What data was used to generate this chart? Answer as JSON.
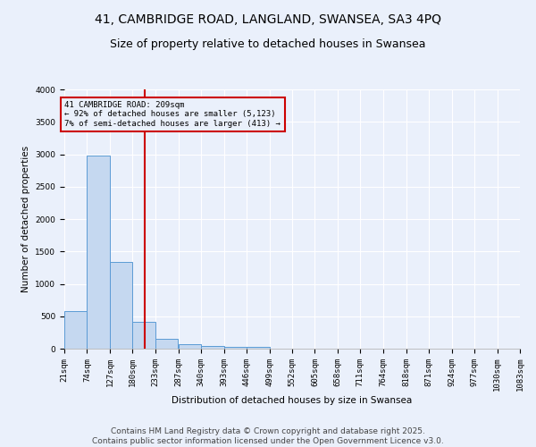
{
  "title": "41, CAMBRIDGE ROAD, LANGLAND, SWANSEA, SA3 4PQ",
  "subtitle": "Size of property relative to detached houses in Swansea",
  "xlabel": "Distribution of detached houses by size in Swansea",
  "ylabel": "Number of detached properties",
  "bins": [
    21,
    74,
    127,
    180,
    233,
    287,
    340,
    393,
    446,
    499,
    552,
    605,
    658,
    711,
    764,
    818,
    871,
    924,
    977,
    1030,
    1083
  ],
  "bar_heights": [
    580,
    2980,
    1340,
    420,
    150,
    70,
    40,
    30,
    30,
    0,
    0,
    0,
    0,
    0,
    0,
    0,
    0,
    0,
    0,
    0
  ],
  "bar_color": "#c5d8f0",
  "bar_edge_color": "#5b9bd5",
  "background_color": "#eaf0fb",
  "grid_color": "#ffffff",
  "vline_x": 209,
  "vline_color": "#cc0000",
  "annotation_text": "41 CAMBRIDGE ROAD: 209sqm\n← 92% of detached houses are smaller (5,123)\n7% of semi-detached houses are larger (413) →",
  "annotation_box_color": "#cc0000",
  "annotation_text_color": "#000000",
  "ylim": [
    0,
    4000
  ],
  "yticks": [
    0,
    500,
    1000,
    1500,
    2000,
    2500,
    3000,
    3500,
    4000
  ],
  "footer_line1": "Contains HM Land Registry data © Crown copyright and database right 2025.",
  "footer_line2": "Contains public sector information licensed under the Open Government Licence v3.0.",
  "title_fontsize": 10,
  "subtitle_fontsize": 9,
  "label_fontsize": 7.5,
  "tick_fontsize": 6.5,
  "footer_fontsize": 6.5,
  "ann_fontsize": 6.5
}
